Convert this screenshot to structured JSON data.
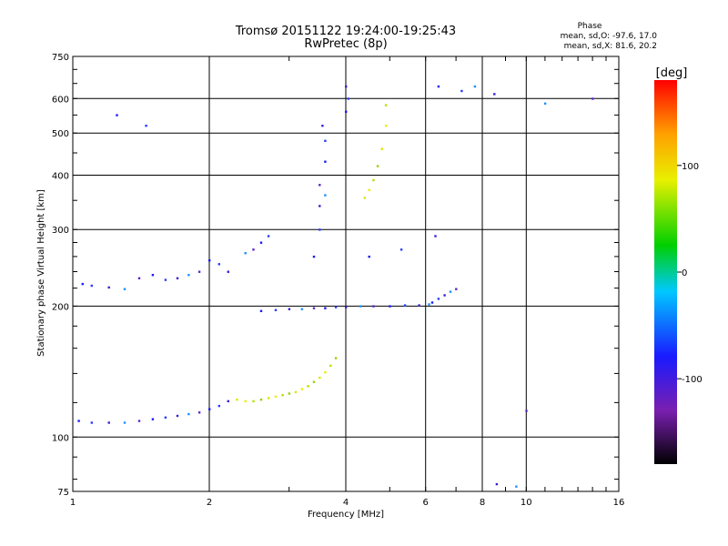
{
  "chart_data": {
    "type": "scatter",
    "title": "Tromsø 20151122 19:24:00-19:25:43",
    "subtitle": "RwPretec (8p)",
    "phase_stats": {
      "heading": "Phase",
      "line_o": "mean, sd,O: -97.6, 17.0",
      "line_x": "mean, sd,X: 81.6, 20.2"
    },
    "xlabel": "Frequency [MHz]",
    "ylabel": "Stationary phase Virtual Height [km]",
    "x_scale": "log",
    "y_scale": "log",
    "xlim": [
      1,
      16
    ],
    "ylim": [
      75,
      750
    ],
    "x_ticks": [
      1,
      2,
      4,
      6,
      8,
      10,
      16
    ],
    "x_tick_labels": [
      "1",
      "2",
      "4",
      "6",
      "8",
      "10",
      "16"
    ],
    "x_gridlines": [
      2,
      4,
      6,
      8,
      10
    ],
    "y_ticks": [
      75,
      100,
      200,
      300,
      400,
      500,
      600,
      750
    ],
    "y_tick_labels": [
      "75",
      "100",
      "200",
      "300",
      "400",
      "500",
      "600",
      "750"
    ],
    "y_gridlines": [
      100,
      200,
      300,
      400,
      500,
      600
    ],
    "grid": true,
    "colorbar": {
      "label": "[deg]",
      "range": [
        -180,
        180
      ],
      "ticks": [
        100,
        0,
        -100
      ],
      "tick_labels": [
        "100",
        "0",
        "-100"
      ],
      "colors": [
        "#000000",
        "#7a1fb0",
        "#1a1aff",
        "#00c8ff",
        "#00d000",
        "#e8f000",
        "#ffa000",
        "#ff0000"
      ]
    },
    "series": [
      {
        "points": [
          [
            1.03,
            109
          ],
          [
            1.1,
            108
          ],
          [
            1.2,
            108
          ],
          [
            1.3,
            108
          ],
          [
            1.4,
            109
          ],
          [
            1.5,
            110
          ],
          [
            1.6,
            111
          ],
          [
            1.7,
            112
          ],
          [
            1.8,
            113
          ],
          [
            1.9,
            114
          ],
          [
            2.0,
            116
          ],
          [
            2.1,
            118
          ],
          [
            2.2,
            121
          ]
        ]
      },
      {
        "points": [
          [
            2.3,
            122
          ],
          [
            2.4,
            121
          ],
          [
            2.5,
            121
          ],
          [
            2.6,
            122
          ],
          [
            2.7,
            123
          ],
          [
            2.8,
            124
          ],
          [
            2.9,
            125
          ],
          [
            3.0,
            126
          ],
          [
            3.1,
            127
          ],
          [
            3.2,
            129
          ],
          [
            3.3,
            131
          ],
          [
            3.4,
            134
          ],
          [
            3.5,
            137
          ],
          [
            3.6,
            141
          ],
          [
            3.7,
            146
          ],
          [
            3.8,
            152
          ]
        ]
      },
      {
        "points": [
          [
            2.6,
            195
          ],
          [
            2.8,
            196
          ],
          [
            3.0,
            197
          ],
          [
            3.2,
            197
          ],
          [
            3.4,
            198
          ],
          [
            3.6,
            198
          ],
          [
            3.8,
            199
          ],
          [
            4.0,
            199
          ],
          [
            4.3,
            200
          ],
          [
            4.6,
            200
          ],
          [
            5.0,
            200
          ],
          [
            5.4,
            201
          ],
          [
            5.8,
            201
          ],
          [
            6.1,
            202
          ]
        ]
      },
      {
        "points": [
          [
            6.2,
            204
          ],
          [
            6.4,
            208
          ],
          [
            6.6,
            212
          ],
          [
            6.8,
            216
          ],
          [
            7.0,
            219
          ]
        ]
      },
      {
        "points": [
          [
            1.05,
            225
          ],
          [
            1.1,
            223
          ],
          [
            1.2,
            221
          ],
          [
            1.3,
            219
          ],
          [
            1.4,
            232
          ],
          [
            1.5,
            236
          ],
          [
            1.6,
            230
          ],
          [
            1.7,
            232
          ],
          [
            1.8,
            236
          ],
          [
            1.9,
            240
          ]
        ]
      },
      {
        "points": [
          [
            2.0,
            255
          ],
          [
            2.1,
            250
          ],
          [
            2.2,
            240
          ],
          [
            2.4,
            265
          ],
          [
            2.5,
            270
          ],
          [
            2.6,
            280
          ],
          [
            2.7,
            290
          ]
        ]
      },
      {
        "points": [
          [
            3.4,
            260
          ],
          [
            3.5,
            300
          ],
          [
            3.5,
            340
          ],
          [
            3.6,
            360
          ],
          [
            3.5,
            380
          ],
          [
            3.6,
            430
          ],
          [
            3.6,
            480
          ],
          [
            3.55,
            520
          ]
        ]
      },
      {
        "points": [
          [
            4.0,
            560
          ],
          [
            4.05,
            600
          ],
          [
            4.0,
            640
          ]
        ]
      },
      {
        "points": [
          [
            4.4,
            355
          ],
          [
            4.5,
            370
          ],
          [
            4.6,
            390
          ],
          [
            4.7,
            420
          ],
          [
            4.8,
            460
          ],
          [
            4.9,
            520
          ],
          [
            4.9,
            580
          ]
        ]
      },
      {
        "points": [
          [
            6.4,
            640
          ],
          [
            7.2,
            625
          ],
          [
            8.5,
            615
          ],
          [
            11,
            585
          ],
          [
            14,
            600
          ],
          [
            1.25,
            550
          ],
          [
            1.45,
            520
          ],
          [
            8.6,
            78
          ],
          [
            9.5,
            77
          ],
          [
            10,
            115
          ],
          [
            4.5,
            260
          ],
          [
            5.3,
            270
          ],
          [
            6.3,
            290
          ],
          [
            7.7,
            640
          ]
        ]
      }
    ]
  }
}
